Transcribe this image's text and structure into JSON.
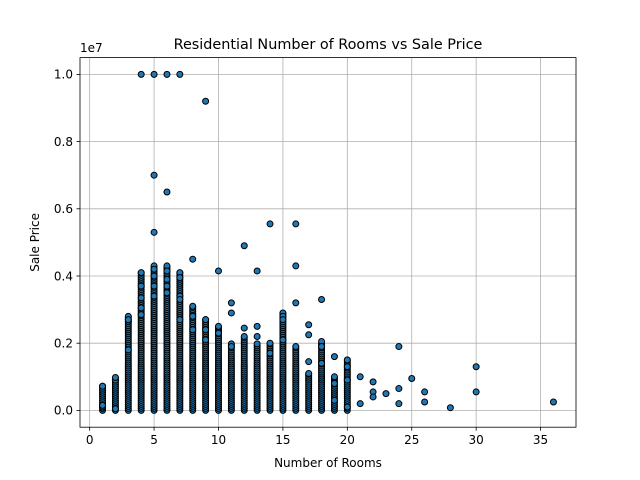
{
  "chart_data": {
    "type": "scatter",
    "title": "Residential Number of Rooms vs Sale Price",
    "xlabel": "Number of Rooms",
    "ylabel": "Sale Price",
    "y_offset_label": "1e7",
    "xlim": [
      -0.75,
      37.75
    ],
    "ylim": [
      -500000,
      10500000
    ],
    "x_ticks": [
      0,
      5,
      10,
      15,
      20,
      25,
      30,
      35
    ],
    "x_tick_labels": [
      "0",
      "5",
      "10",
      "15",
      "20",
      "25",
      "30",
      "35"
    ],
    "y_ticks": [
      0,
      2000000,
      4000000,
      6000000,
      8000000,
      10000000
    ],
    "y_tick_labels": [
      "0.0",
      "0.2",
      "0.4",
      "0.6",
      "0.8",
      "1.0"
    ],
    "grid": true,
    "marker_color": "#1f77b4",
    "marker_edge_color": "#000000",
    "columns": [
      {
        "x": 1,
        "max": 720000
      },
      {
        "x": 2,
        "max": 980000
      },
      {
        "x": 3,
        "max": 2800000
      },
      {
        "x": 4,
        "max": 4100000
      },
      {
        "x": 5,
        "max": 4300000
      },
      {
        "x": 6,
        "max": 4300000
      },
      {
        "x": 7,
        "max": 4100000
      },
      {
        "x": 8,
        "max": 3100000
      },
      {
        "x": 9,
        "max": 2700000
      },
      {
        "x": 10,
        "max": 2500000
      },
      {
        "x": 11,
        "max": 2000000
      },
      {
        "x": 12,
        "max": 2200000
      },
      {
        "x": 13,
        "max": 2000000
      },
      {
        "x": 14,
        "max": 2000000
      },
      {
        "x": 15,
        "max": 2900000
      },
      {
        "x": 16,
        "max": 1900000
      },
      {
        "x": 17,
        "max": 1100000
      },
      {
        "x": 18,
        "max": 2000000
      },
      {
        "x": 19,
        "max": 1000000
      },
      {
        "x": 20,
        "max": 1500000
      }
    ],
    "points": [
      {
        "x": 1,
        "y": 100000
      },
      {
        "x": 1,
        "y": 150000
      },
      {
        "x": 1,
        "y": 720000
      },
      {
        "x": 2,
        "y": 900000
      },
      {
        "x": 2,
        "y": 980000
      },
      {
        "x": 2,
        "y": 50000
      },
      {
        "x": 3,
        "y": 2650000
      },
      {
        "x": 3,
        "y": 2800000
      },
      {
        "x": 3,
        "y": 2700000
      },
      {
        "x": 3,
        "y": 1800000
      },
      {
        "x": 4,
        "y": 10000000
      },
      {
        "x": 4,
        "y": 4100000
      },
      {
        "x": 4,
        "y": 3700000
      },
      {
        "x": 4,
        "y": 3350000
      },
      {
        "x": 4,
        "y": 3050000
      },
      {
        "x": 4,
        "y": 2850000
      },
      {
        "x": 5,
        "y": 10000000
      },
      {
        "x": 5,
        "y": 7000000
      },
      {
        "x": 5,
        "y": 5300000
      },
      {
        "x": 5,
        "y": 4300000
      },
      {
        "x": 5,
        "y": 4200000
      },
      {
        "x": 5,
        "y": 4000000
      },
      {
        "x": 5,
        "y": 3700000
      },
      {
        "x": 5,
        "y": 3400000
      },
      {
        "x": 6,
        "y": 10000000
      },
      {
        "x": 6,
        "y": 6500000
      },
      {
        "x": 6,
        "y": 4300000
      },
      {
        "x": 6,
        "y": 4150000
      },
      {
        "x": 6,
        "y": 3900000
      },
      {
        "x": 6,
        "y": 3700000
      },
      {
        "x": 6,
        "y": 3500000
      },
      {
        "x": 7,
        "y": 10000000
      },
      {
        "x": 7,
        "y": 4100000
      },
      {
        "x": 7,
        "y": 3950000
      },
      {
        "x": 7,
        "y": 3400000
      },
      {
        "x": 7,
        "y": 3300000
      },
      {
        "x": 7,
        "y": 2700000
      },
      {
        "x": 8,
        "y": 4500000
      },
      {
        "x": 8,
        "y": 3100000
      },
      {
        "x": 8,
        "y": 2800000
      },
      {
        "x": 8,
        "y": 2400000
      },
      {
        "x": 9,
        "y": 9200000
      },
      {
        "x": 9,
        "y": 2700000
      },
      {
        "x": 9,
        "y": 2400000
      },
      {
        "x": 9,
        "y": 2100000
      },
      {
        "x": 10,
        "y": 4150000
      },
      {
        "x": 10,
        "y": 2500000
      },
      {
        "x": 10,
        "y": 2300000
      },
      {
        "x": 11,
        "y": 3200000
      },
      {
        "x": 11,
        "y": 2900000
      },
      {
        "x": 11,
        "y": 1900000
      },
      {
        "x": 12,
        "y": 4900000
      },
      {
        "x": 12,
        "y": 2450000
      },
      {
        "x": 12,
        "y": 2200000
      },
      {
        "x": 13,
        "y": 4150000
      },
      {
        "x": 13,
        "y": 2500000
      },
      {
        "x": 13,
        "y": 2200000
      },
      {
        "x": 14,
        "y": 5550000
      },
      {
        "x": 14,
        "y": 2000000
      },
      {
        "x": 14,
        "y": 1700000
      },
      {
        "x": 15,
        "y": 2900000
      },
      {
        "x": 15,
        "y": 2800000
      },
      {
        "x": 15,
        "y": 2700000
      },
      {
        "x": 15,
        "y": 2100000
      },
      {
        "x": 16,
        "y": 5550000
      },
      {
        "x": 16,
        "y": 4300000
      },
      {
        "x": 16,
        "y": 3200000
      },
      {
        "x": 16,
        "y": 1900000
      },
      {
        "x": 17,
        "y": 2550000
      },
      {
        "x": 17,
        "y": 2250000
      },
      {
        "x": 17,
        "y": 1450000
      },
      {
        "x": 17,
        "y": 1100000
      },
      {
        "x": 18,
        "y": 3300000
      },
      {
        "x": 18,
        "y": 2050000
      },
      {
        "x": 18,
        "y": 1900000
      },
      {
        "x": 18,
        "y": 1400000
      },
      {
        "x": 19,
        "y": 1600000
      },
      {
        "x": 19,
        "y": 1000000
      },
      {
        "x": 19,
        "y": 800000
      },
      {
        "x": 19,
        "y": 300000
      },
      {
        "x": 20,
        "y": 1500000
      },
      {
        "x": 20,
        "y": 1300000
      },
      {
        "x": 20,
        "y": 900000
      },
      {
        "x": 20,
        "y": 100000
      },
      {
        "x": 21,
        "y": 1000000
      },
      {
        "x": 21,
        "y": 200000
      },
      {
        "x": 22,
        "y": 850000
      },
      {
        "x": 22,
        "y": 550000
      },
      {
        "x": 22,
        "y": 400000
      },
      {
        "x": 23,
        "y": 500000
      },
      {
        "x": 24,
        "y": 1900000
      },
      {
        "x": 24,
        "y": 650000
      },
      {
        "x": 24,
        "y": 200000
      },
      {
        "x": 25,
        "y": 950000
      },
      {
        "x": 26,
        "y": 550000
      },
      {
        "x": 26,
        "y": 250000
      },
      {
        "x": 28,
        "y": 80000
      },
      {
        "x": 30,
        "y": 1300000
      },
      {
        "x": 30,
        "y": 550000
      },
      {
        "x": 36,
        "y": 250000
      }
    ]
  }
}
